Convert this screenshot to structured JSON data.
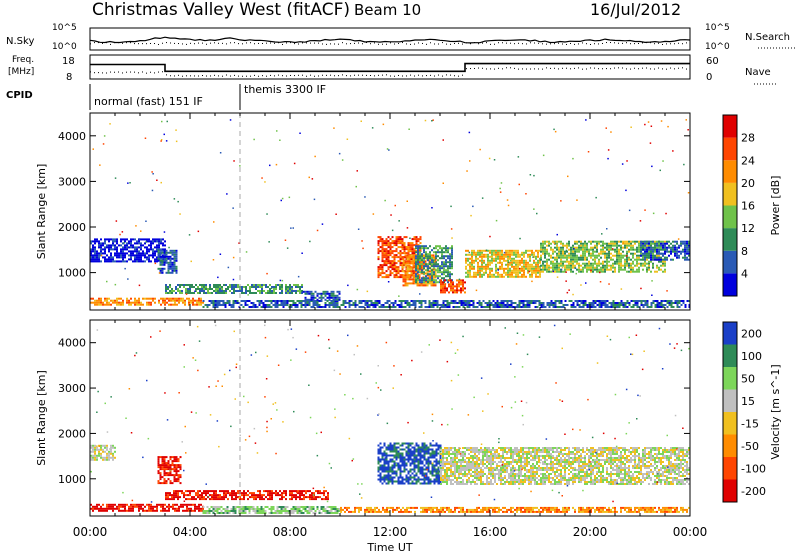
{
  "header": {
    "station": "Christmas Valley West (fitACF)",
    "beam": "Beam 10",
    "date": "16/Jul/2012"
  },
  "noise_panel": {
    "left_label": "N.Sky",
    "right_label": "N.Search",
    "right_ticks": [
      "10^5",
      "10^0"
    ],
    "left_ticks": [
      "10^5",
      "10^0"
    ]
  },
  "freq_panel": {
    "left_label_line1": "Freq.",
    "left_label_line2": "[MHz]",
    "left_ticks": [
      "18",
      "8"
    ],
    "right_ticks": [
      "60",
      "0"
    ],
    "right_label": "Nave",
    "cpid_label": "CPID",
    "freq_steps": [
      {
        "t0": 0.0,
        "t1": 3.0,
        "mhz": 14.6
      },
      {
        "t0": 3.0,
        "t1": 15.0,
        "mhz": 11.5
      },
      {
        "t0": 15.0,
        "t1": 24.0,
        "mhz": 15.0
      }
    ],
    "modes": [
      {
        "t0": 0.0,
        "label": "normal (fast) 151 IF"
      },
      {
        "t0": 6.0,
        "label": "themis 3300 IF"
      }
    ]
  },
  "axes": {
    "xlabel": "Time UT",
    "x_ticks": [
      "00:00",
      "04:00",
      "08:00",
      "12:00",
      "16:00",
      "20:00",
      "00:00"
    ],
    "ylabel": "Slant Range [km]",
    "y_ticks": [
      "1000",
      "2000",
      "3000",
      "4000"
    ]
  },
  "colors": {
    "scale": [
      "#0000dd",
      "#2a5ab5",
      "#2e8b57",
      "#6fc24a",
      "#f0c020",
      "#ff8c00",
      "#ff4500",
      "#e00000"
    ]
  },
  "chart_data": [
    {
      "type": "heatmap",
      "name": "power",
      "xlim": [
        0,
        24
      ],
      "ylim": [
        180,
        4500
      ],
      "colorbar": {
        "label": "Power [dB]",
        "ticks": [
          "4",
          "8",
          "12",
          "16",
          "20",
          "24",
          "28"
        ],
        "colors": [
          "#0000dd",
          "#2a5ab5",
          "#2e8b57",
          "#6fc24a",
          "#f0c020",
          "#ff8c00",
          "#ff4500",
          "#e00000"
        ]
      },
      "regions": [
        {
          "t0": 0.0,
          "t1": 4.5,
          "r0": 300,
          "r1": 450,
          "level": 5
        },
        {
          "t0": 4.5,
          "t1": 24.0,
          "r0": 250,
          "r1": 400,
          "level": 1
        },
        {
          "t0": 0.0,
          "t1": 3.0,
          "r0": 1250,
          "r1": 1750,
          "level": 0
        },
        {
          "t0": 2.7,
          "t1": 3.5,
          "r0": 1000,
          "r1": 1500,
          "level": 1
        },
        {
          "t0": 3.0,
          "t1": 8.5,
          "r0": 550,
          "r1": 750,
          "level": 2
        },
        {
          "t0": 8.5,
          "t1": 10.0,
          "r0": 400,
          "r1": 600,
          "level": 1
        },
        {
          "t0": 11.5,
          "t1": 13.2,
          "r0": 900,
          "r1": 1800,
          "level": 6
        },
        {
          "t0": 12.5,
          "t1": 13.8,
          "r0": 700,
          "r1": 1400,
          "level": 5
        },
        {
          "t0": 13.0,
          "t1": 14.5,
          "r0": 800,
          "r1": 1600,
          "level": 2
        },
        {
          "t0": 14.0,
          "t1": 15.0,
          "r0": 550,
          "r1": 850,
          "level": 6
        },
        {
          "t0": 15.0,
          "t1": 18.0,
          "r0": 900,
          "r1": 1500,
          "level": 4
        },
        {
          "t0": 18.0,
          "t1": 23.0,
          "r0": 1000,
          "r1": 1700,
          "level": 3
        },
        {
          "t0": 22.0,
          "t1": 24.0,
          "r0": 1300,
          "r1": 1700,
          "level": 1
        }
      ]
    },
    {
      "type": "heatmap",
      "name": "velocity",
      "xlim": [
        0,
        24
      ],
      "ylim": [
        180,
        4500
      ],
      "colorbar": {
        "label": "Velocity [m s^-1]",
        "ticks": [
          "200",
          "100",
          "50",
          "15",
          "-15",
          "-50",
          "-100",
          "-200"
        ],
        "colors": [
          "#1a3fc8",
          "#2e8b57",
          "#7dd65a",
          "#c0c0c0",
          "#f0c020",
          "#ff8c00",
          "#ff4500",
          "#e00000"
        ]
      },
      "regions": [
        {
          "t0": 0.0,
          "t1": 4.5,
          "r0": 300,
          "r1": 450,
          "level": 7
        },
        {
          "t0": 4.5,
          "t1": 10.0,
          "r0": 250,
          "r1": 400,
          "level": 2
        },
        {
          "t0": 10.0,
          "t1": 24.0,
          "r0": 250,
          "r1": 380,
          "level": 5
        },
        {
          "t0": 0.0,
          "t1": 1.0,
          "r0": 1400,
          "r1": 1750,
          "level": 3
        },
        {
          "t0": 2.7,
          "t1": 3.6,
          "r0": 900,
          "r1": 1500,
          "level": 7
        },
        {
          "t0": 3.0,
          "t1": 9.5,
          "r0": 550,
          "r1": 750,
          "level": 7
        },
        {
          "t0": 11.5,
          "t1": 14.0,
          "r0": 900,
          "r1": 1800,
          "level": 0
        },
        {
          "t0": 14.0,
          "t1": 24.0,
          "r0": 900,
          "r1": 1700,
          "level": 3
        }
      ]
    }
  ]
}
